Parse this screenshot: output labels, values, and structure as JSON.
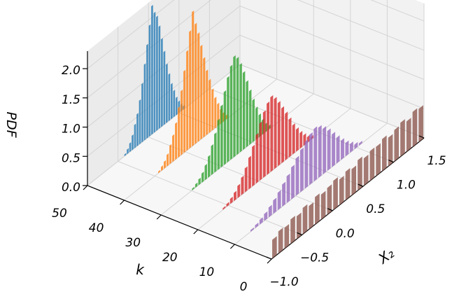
{
  "chart_data": {
    "type": "3d-bar-histogram",
    "xlabel": "X₂",
    "ylabel": "k",
    "zlabel": "PDF",
    "xlim": [
      -1.0,
      1.5
    ],
    "ylim": [
      0,
      50
    ],
    "zlim": [
      0.0,
      2.3
    ],
    "x_ticks": [
      "−1.0",
      "−0.5",
      "0.0",
      "0.5",
      "1.0",
      "1.5"
    ],
    "y_ticks": [
      "0",
      "10",
      "20",
      "30",
      "40",
      "50"
    ],
    "z_ticks": [
      "0.0",
      "0.5",
      "1.0",
      "1.5",
      "2.0"
    ],
    "grid": true,
    "series": [
      {
        "k": 50,
        "color": "#1f77b4",
        "bin_start": -0.4,
        "bin_end": 0.6,
        "values": [
          0.03,
          0.08,
          0.15,
          0.25,
          0.4,
          0.55,
          0.75,
          1.0,
          1.3,
          1.6,
          1.9,
          2.2,
          2.05,
          1.95,
          1.75,
          1.5,
          1.25,
          1.0,
          0.8,
          0.6,
          0.45,
          0.3,
          0.2,
          0.12,
          0.06
        ]
      },
      {
        "k": 40,
        "color": "#ff7f0e",
        "bin_start": -0.45,
        "bin_end": 0.7,
        "values": [
          0.03,
          0.07,
          0.12,
          0.2,
          0.32,
          0.45,
          0.62,
          0.85,
          1.1,
          1.4,
          1.7,
          2.0,
          2.3,
          2.05,
          1.85,
          1.6,
          1.35,
          1.1,
          0.9,
          0.7,
          0.52,
          0.38,
          0.25,
          0.15,
          0.07
        ]
      },
      {
        "k": 30,
        "color": "#2ca02c",
        "bin_start": -0.5,
        "bin_end": 0.8,
        "values": [
          0.03,
          0.06,
          0.1,
          0.16,
          0.25,
          0.36,
          0.5,
          0.66,
          0.85,
          1.05,
          1.25,
          1.45,
          1.6,
          1.72,
          1.65,
          1.5,
          1.32,
          1.12,
          0.92,
          0.72,
          0.54,
          0.38,
          0.25,
          0.14,
          0.06
        ]
      },
      {
        "k": 20,
        "color": "#d62728",
        "bin_start": -0.6,
        "bin_end": 0.9,
        "values": [
          0.03,
          0.05,
          0.09,
          0.14,
          0.21,
          0.3,
          0.41,
          0.54,
          0.68,
          0.83,
          0.98,
          1.12,
          1.22,
          1.28,
          1.2,
          1.08,
          0.94,
          0.8,
          0.65,
          0.5,
          0.38,
          0.27,
          0.18,
          0.1,
          0.05
        ]
      },
      {
        "k": 10,
        "color": "#9467bd",
        "bin_start": -0.75,
        "bin_end": 1.1,
        "values": [
          0.03,
          0.05,
          0.08,
          0.12,
          0.17,
          0.23,
          0.3,
          0.38,
          0.46,
          0.55,
          0.64,
          0.72,
          0.8,
          0.86,
          0.9,
          0.86,
          0.78,
          0.68,
          0.56,
          0.44,
          0.33,
          0.23,
          0.15,
          0.08,
          0.04
        ]
      },
      {
        "k": 0,
        "color": "#8c564b",
        "bin_start": -1.0,
        "bin_end": 1.5,
        "values": [
          0.32,
          0.38,
          0.36,
          0.42,
          0.39,
          0.45,
          0.4,
          0.47,
          0.43,
          0.46,
          0.5,
          0.44,
          0.49,
          0.45,
          0.52,
          0.47,
          0.51,
          0.5,
          0.55,
          0.49,
          0.54,
          0.58,
          0.52,
          0.6,
          0.57
        ]
      }
    ]
  }
}
